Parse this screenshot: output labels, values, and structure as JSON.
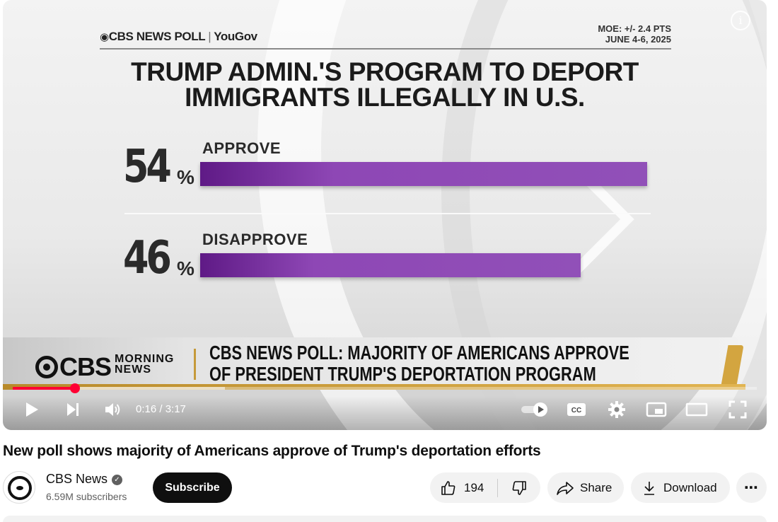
{
  "video": {
    "brand_logo": "CBS NEWS POLL",
    "brand_partner": "YouGov",
    "moe_line1": "MOE: +/- 2.4 PTS",
    "moe_line2": "JUNE 4-6, 2025",
    "poll_title_line1": "TRUMP ADMIN.'S PROGRAM TO DEPORT",
    "poll_title_line2": "IMMIGRANTS ILLEGALLY IN U.S.",
    "rows": [
      {
        "percent": "54",
        "sign": "%",
        "label": "APPROVE",
        "value": 54
      },
      {
        "percent": "46",
        "sign": "%",
        "label": "DISAPPROVE",
        "value": 46
      }
    ],
    "lower_third": {
      "logo": "CBS",
      "show_line1": "MORNING",
      "show_line2": "NEWS",
      "headline_line1": "CBS NEWS POLL: MAJORITY OF AMERICANS APPROVE",
      "headline_line2": "OF PRESIDENT TRUMP'S DEPORTATION PROGRAM"
    },
    "info_icon": "i",
    "progress_fraction": 0.084,
    "buffered_fraction": 0.285,
    "time": "0:16 / 3:17",
    "accent_color": "#ff0033"
  },
  "controls": {
    "play_icon": "play-icon",
    "next_icon": "next-icon",
    "volume_icon": "volume-icon",
    "autoplay_icon": "autoplay-toggle-icon",
    "captions_icon": "captions-icon",
    "settings_icon": "gear-icon",
    "miniplayer_icon": "miniplayer-icon",
    "theater_icon": "theater-icon",
    "fullscreen_icon": "fullscreen-icon"
  },
  "meta": {
    "title": "New poll shows majority of Americans approve of Trump's deportation efforts",
    "channel_name": "CBS News",
    "subscribers": "6.59M subscribers",
    "subscribe_label": "Subscribe",
    "like_count": "194",
    "share_label": "Share",
    "download_label": "Download",
    "more_label": "⋯"
  }
}
